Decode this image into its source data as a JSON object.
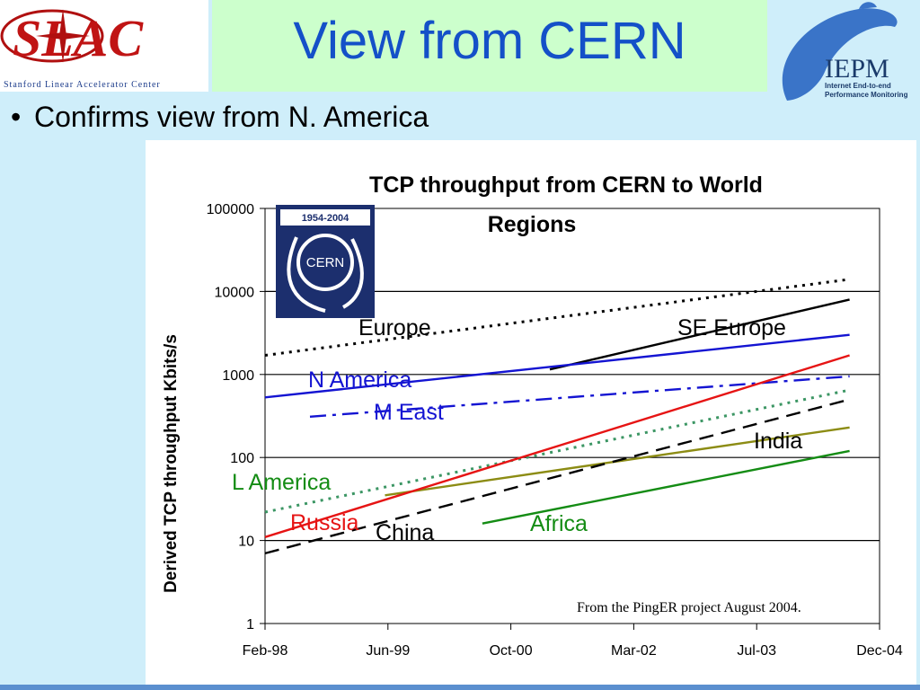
{
  "header": {
    "title": "View from CERN",
    "slac_logo_text": "SLAC",
    "slac_subtitle": "Stanford Linear Accelerator Center",
    "iepm_logo_text": "IEPM",
    "iepm_subtitle_1": "Internet End-to-end",
    "iepm_subtitle_2": "Performance Monitoring"
  },
  "bullet": {
    "text": "Confirms view from N. America"
  },
  "chart_data": {
    "type": "line",
    "title_line1": "TCP throughput from CERN to World",
    "title_line2": "Regions",
    "ylabel": "Derived TCP throughput Kbits/s",
    "xlabel": "",
    "yscale": "log",
    "ylim": [
      1,
      100000
    ],
    "yticks": [
      "1",
      "10",
      "100",
      "1000",
      "10000",
      "100000"
    ],
    "xlim": [
      "1998-02",
      "2004-12"
    ],
    "xticks": [
      "Feb-98",
      "Jun-99",
      "Oct-00",
      "Mar-02",
      "Jul-03",
      "Dec-04"
    ],
    "grid": "horizontal",
    "logo_text_years": "1954-2004",
    "logo_text": "CERN",
    "source_note": "From the PingER project August 2004.",
    "series": [
      {
        "name": "Europe",
        "color": "#000000",
        "style": "dotted",
        "x": [
          "1998-02",
          "2004-08"
        ],
        "y": [
          1700,
          14000
        ]
      },
      {
        "name": "SE Europe",
        "color": "#000000",
        "style": "solid",
        "x": [
          "2001-04",
          "2004-08"
        ],
        "y": [
          1150,
          8000
        ]
      },
      {
        "name": "N America",
        "color": "#1414d2",
        "style": "solid",
        "x": [
          "1998-02",
          "2004-08"
        ],
        "y": [
          530,
          3000
        ]
      },
      {
        "name": "M East",
        "color": "#1414d2",
        "style": "dashdot",
        "x": [
          "1998-08",
          "2004-08"
        ],
        "y": [
          310,
          950
        ]
      },
      {
        "name": "India",
        "color": "#8c8c14",
        "style": "solid",
        "x": [
          "1999-06",
          "2004-08"
        ],
        "y": [
          35,
          230
        ]
      },
      {
        "name": "L America",
        "color": "#3c9664",
        "style": "dotted",
        "x": [
          "1998-02",
          "2004-08"
        ],
        "y": [
          22,
          650
        ]
      },
      {
        "name": "Russia",
        "color": "#e61414",
        "style": "solid",
        "x": [
          "1998-02",
          "2004-08"
        ],
        "y": [
          11,
          1700
        ]
      },
      {
        "name": "China",
        "color": "#000000",
        "style": "dashed",
        "x": [
          "1998-02",
          "2004-08"
        ],
        "y": [
          7,
          500
        ]
      },
      {
        "name": "Africa",
        "color": "#148c14",
        "style": "solid",
        "x": [
          "2000-07",
          "2004-08"
        ],
        "y": [
          16,
          120
        ]
      }
    ]
  }
}
